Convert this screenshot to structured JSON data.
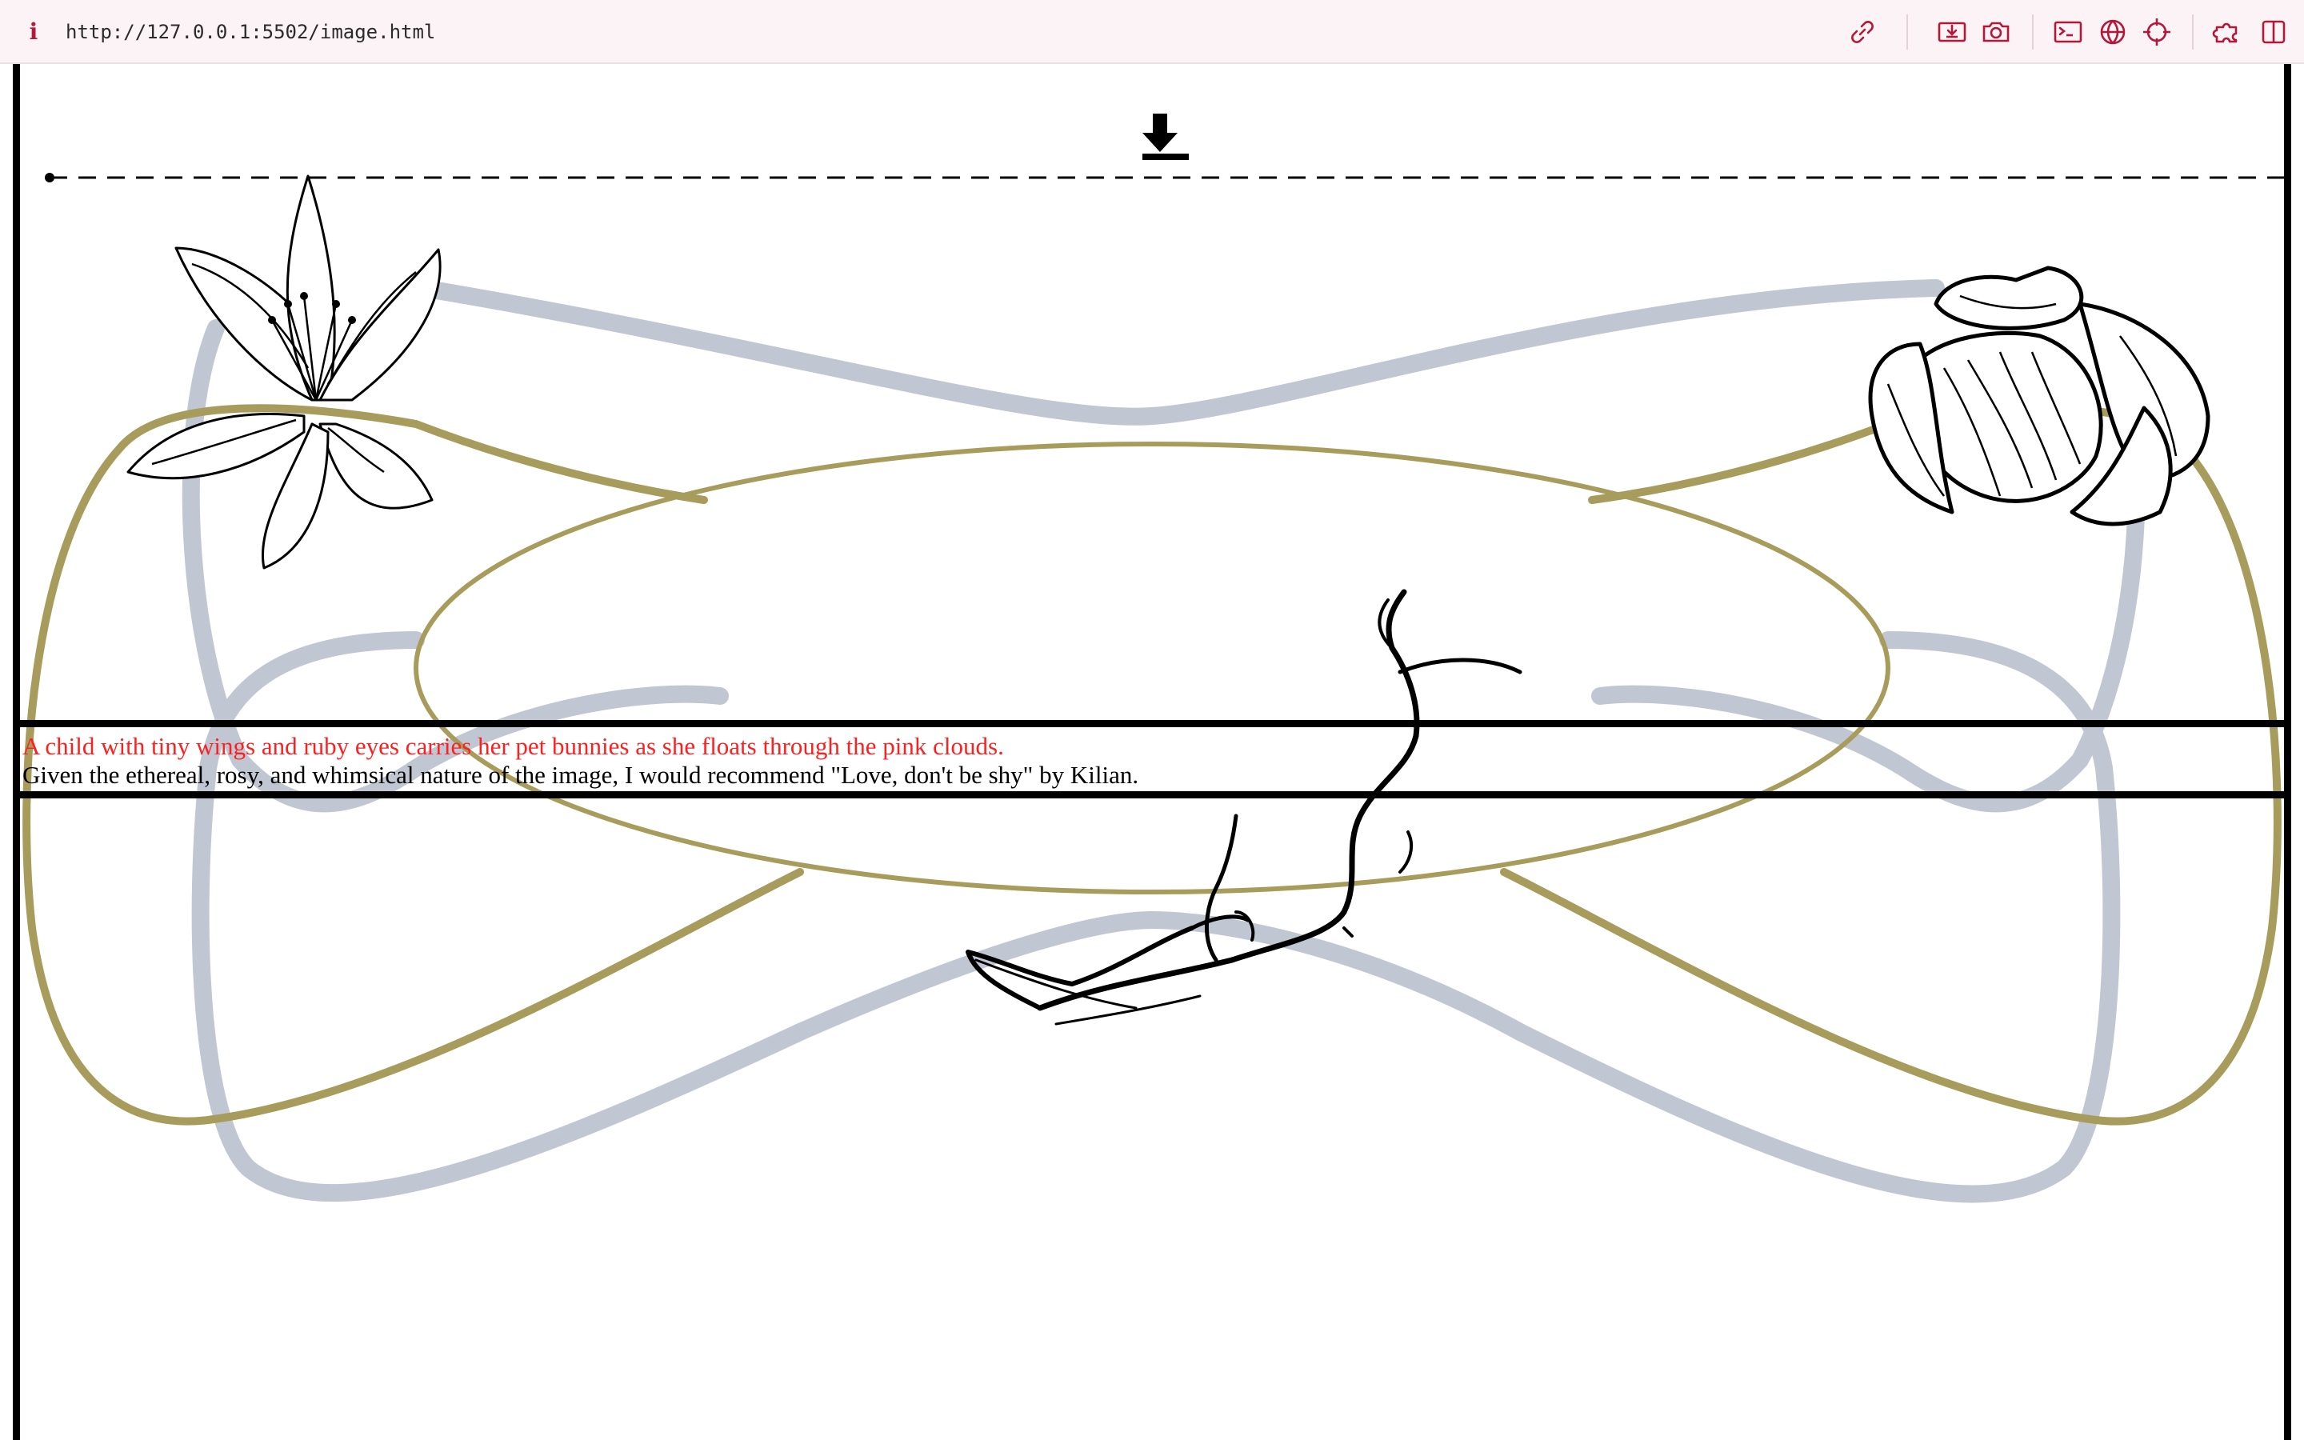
{
  "browser": {
    "info_glyph": "i",
    "url": "http://127.0.0.1:5502/image.html",
    "toolbar_icons": [
      "link-icon",
      "download-box-icon",
      "camera-icon",
      "terminal-icon",
      "globe-icon",
      "crosshair-icon",
      "extensions-icon",
      "split-view-icon"
    ]
  },
  "page": {
    "download_icon": "download-arrow-icon",
    "caption": "A child with tiny wings and ruby eyes carries her pet bunnies as she floats through the pink clouds.",
    "recommendation": "Given the ethereal, rosy, and whimsical nature of the image, I would recommend \"Love, don't be shy\" by Kilian.",
    "colors": {
      "caption_text": "#ff1f1f",
      "body_text": "#000000",
      "olive_line": "#a89c5c",
      "blue_gray_line": "#c0c6d2",
      "browser_accent": "#b3173a"
    },
    "illustrations": [
      "lily-flower",
      "lotus-flower",
      "cherry-branch"
    ]
  }
}
